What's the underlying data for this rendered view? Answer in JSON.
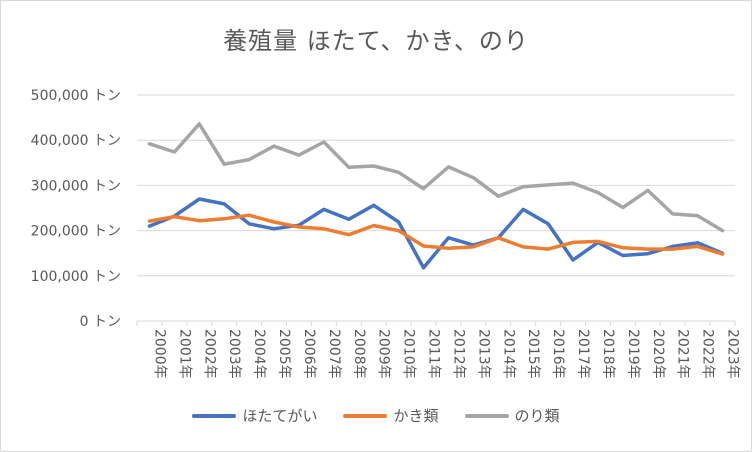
{
  "chart_data": {
    "type": "line",
    "title": "養殖量 ほたて、かき、のり",
    "xlabel": "",
    "ylabel": "",
    "categories": [
      "2000年",
      "2001年",
      "2002年",
      "2003年",
      "2004年",
      "2005年",
      "2006年",
      "2007年",
      "2008年",
      "2009年",
      "2010年",
      "2011年",
      "2012年",
      "2013年",
      "2014年",
      "2015年",
      "2016年",
      "2017年",
      "2018年",
      "2019年",
      "2020年",
      "2021年",
      "2022年",
      "2023年"
    ],
    "ylim": [
      0,
      500000
    ],
    "yticks": [
      0,
      100000,
      200000,
      300000,
      400000,
      500000
    ],
    "ytick_labels": [
      "0 トン",
      "100,000 トン",
      "200,000 トン",
      "300,000 トン",
      "400,000 トン",
      "500,000 トン"
    ],
    "grid": true,
    "legend_position": "bottom",
    "series": [
      {
        "name": "ほたてがい",
        "color": "#4472C4",
        "values": [
          210000,
          232000,
          270000,
          259000,
          215000,
          204000,
          212000,
          247000,
          225000,
          256000,
          219000,
          118000,
          184000,
          168000,
          184000,
          247000,
          215000,
          135000,
          174000,
          145000,
          149000,
          165000,
          173000,
          150000
        ]
      },
      {
        "name": "かき類",
        "color": "#ED7D31",
        "values": [
          221000,
          231000,
          222000,
          226000,
          234000,
          219000,
          208000,
          204000,
          191000,
          211000,
          200000,
          166000,
          161000,
          164000,
          184000,
          164000,
          159000,
          174000,
          176000,
          162000,
          159000,
          159000,
          165000,
          148000
        ]
      },
      {
        "name": "のり類",
        "color": "#A5A5A5",
        "values": [
          392000,
          374000,
          436000,
          347000,
          357000,
          387000,
          367000,
          396000,
          340000,
          343000,
          329000,
          293000,
          341000,
          317000,
          276000,
          297000,
          301000,
          305000,
          284000,
          251000,
          289000,
          237000,
          233000,
          200000
        ]
      }
    ]
  }
}
